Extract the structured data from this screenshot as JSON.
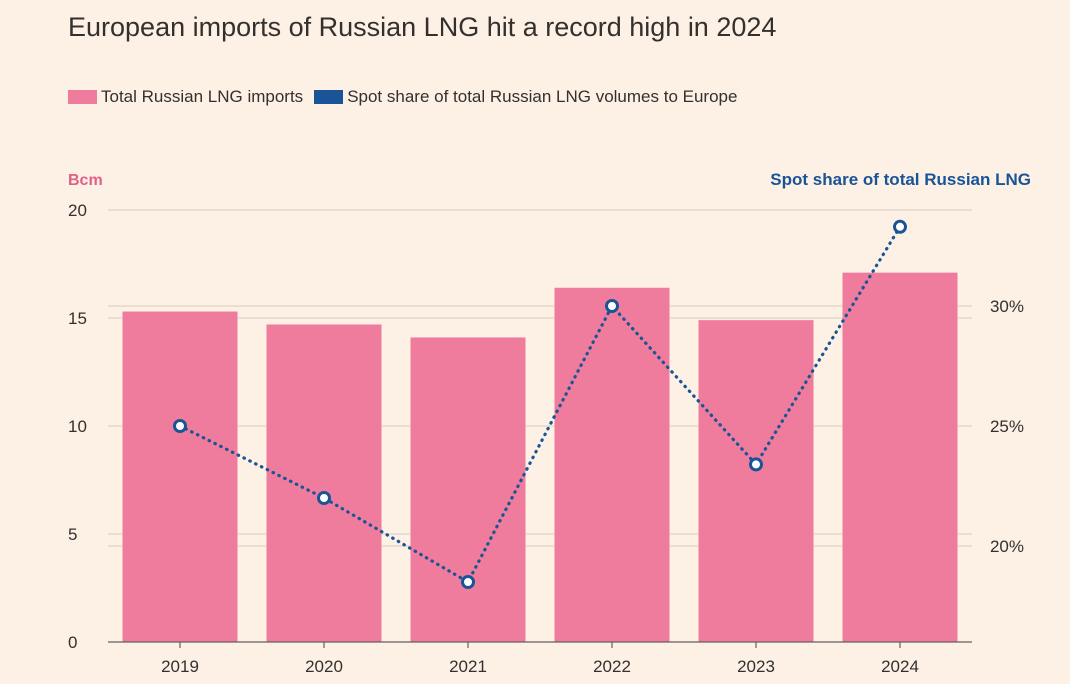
{
  "title": "European imports of Russian LNG hit a record high in 2024",
  "legend": [
    {
      "label": "Total Russian LNG imports",
      "color": "#ef7c9c",
      "swatch": "bar"
    },
    {
      "label": "Spot share of total Russian LNG volumes to Europe",
      "color": "#1a5496",
      "swatch": "line"
    }
  ],
  "colors": {
    "background": "#fdf1e6",
    "bar": "#ef7c9c",
    "line": "#1a5496",
    "grid": "#d9cdc3",
    "left_axis_title": "#e0608a",
    "right_axis_title": "#1a5496",
    "text": "#33302e"
  },
  "chart_data": {
    "type": "bar",
    "categories": [
      "2019",
      "2020",
      "2021",
      "2022",
      "2023",
      "2024"
    ],
    "series": [
      {
        "name": "Total Russian LNG imports",
        "type": "bar",
        "axis": "left",
        "values": [
          15.3,
          14.7,
          14.1,
          16.4,
          14.9,
          17.1
        ]
      },
      {
        "name": "Spot share of total Russian LNG volumes to Europe",
        "type": "line",
        "axis": "right",
        "values": [
          25.0,
          22.0,
          18.5,
          30.0,
          23.4,
          33.3
        ]
      }
    ],
    "left_axis": {
      "title": "Bcm",
      "range": [
        0,
        20
      ],
      "ticks": [
        "0",
        "5",
        "10",
        "15",
        "20"
      ],
      "tick_values": [
        0,
        5,
        10,
        15,
        20
      ]
    },
    "right_axis": {
      "title": "Spot share of total Russian LNG",
      "range": [
        16,
        34
      ],
      "ticks": [
        "20%",
        "25%",
        "30%"
      ],
      "tick_values": [
        20,
        25,
        30
      ]
    },
    "grid": true,
    "legend_position": "top-left"
  }
}
